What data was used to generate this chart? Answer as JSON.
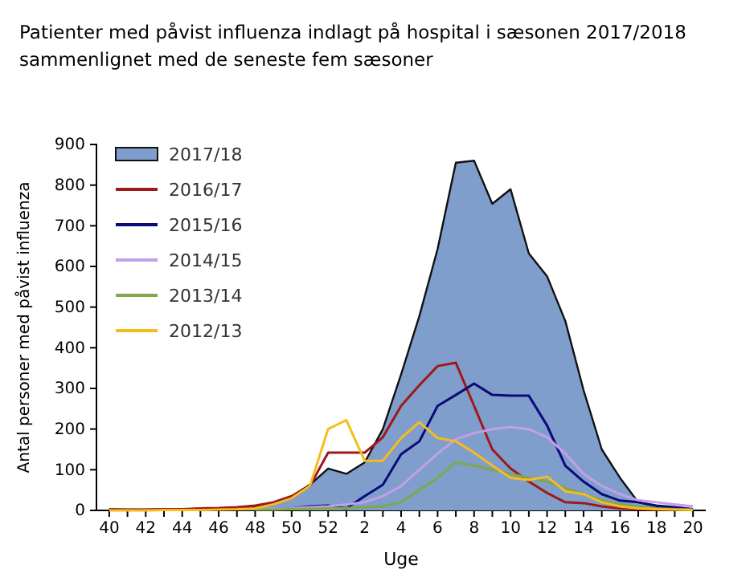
{
  "chart_data": {
    "type": "line",
    "title": "Patienter med påvist influenza indlagt på hospital i sæsonen 2017/2018 sammenlignet med de seneste fem sæsoner",
    "xlabel": "Uge",
    "ylabel": "Antal personer med påvist influenza",
    "categories": [
      "40",
      null,
      "42",
      null,
      "44",
      null,
      "46",
      null,
      "48",
      null,
      "50",
      null,
      "52",
      null,
      "2",
      null,
      "4",
      null,
      "6",
      null,
      "8",
      null,
      "10",
      null,
      "12",
      null,
      "14",
      null,
      "16",
      null,
      "18",
      null,
      "20"
    ],
    "ylim": [
      0,
      900
    ],
    "yticks": [
      0,
      100,
      200,
      300,
      400,
      500,
      600,
      700,
      800,
      900
    ],
    "legend": "top left",
    "series": [
      {
        "name": "2017/18",
        "type": "area",
        "color": "#7f9ecb",
        "values": [
          3,
          2,
          2,
          3,
          3,
          4,
          5,
          6,
          10,
          20,
          35,
          63,
          103,
          90,
          118,
          200,
          335,
          478,
          643,
          855,
          860,
          754,
          790,
          632,
          576,
          466,
          296,
          150,
          80,
          20,
          10,
          5,
          0
        ]
      },
      {
        "name": "2016/17",
        "color": "#a01818",
        "values": [
          2,
          2,
          2,
          3,
          3,
          5,
          6,
          8,
          12,
          20,
          35,
          60,
          142,
          142,
          142,
          180,
          257,
          308,
          355,
          363,
          257,
          150,
          103,
          71,
          43,
          20,
          18,
          10,
          5,
          3,
          2,
          2,
          1
        ]
      },
      {
        "name": "2015/16",
        "color": "#0a0a78",
        "values": [
          null,
          null,
          null,
          null,
          null,
          null,
          null,
          null,
          2,
          3,
          5,
          10,
          12,
          5,
          35,
          63,
          138,
          170,
          257,
          284,
          312,
          284,
          282,
          282,
          209,
          110,
          71,
          40,
          24,
          20,
          12,
          8,
          3
        ]
      },
      {
        "name": "2014/15",
        "color": "#c49ee8",
        "values": [
          null,
          null,
          null,
          null,
          null,
          null,
          null,
          null,
          3,
          4,
          5,
          8,
          10,
          15,
          20,
          35,
          60,
          100,
          140,
          175,
          190,
          200,
          205,
          200,
          180,
          140,
          90,
          60,
          40,
          25,
          20,
          15,
          10
        ]
      },
      {
        "name": "2013/14",
        "color": "#7fa84a",
        "values": [
          null,
          null,
          null,
          null,
          null,
          null,
          null,
          null,
          2,
          2,
          3,
          4,
          5,
          6,
          8,
          10,
          20,
          50,
          80,
          118,
          110,
          100,
          90,
          80,
          70,
          55,
          40,
          25,
          15,
          10,
          5,
          3,
          2
        ]
      },
      {
        "name": "2012/13",
        "color": "#f5bc1c",
        "values": [
          0,
          0,
          0,
          1,
          1,
          1,
          2,
          3,
          5,
          15,
          30,
          60,
          200,
          222,
          122,
          122,
          178,
          217,
          178,
          170,
          142,
          110,
          80,
          75,
          83,
          47,
          40,
          20,
          10,
          5,
          3,
          2,
          1
        ]
      }
    ]
  }
}
